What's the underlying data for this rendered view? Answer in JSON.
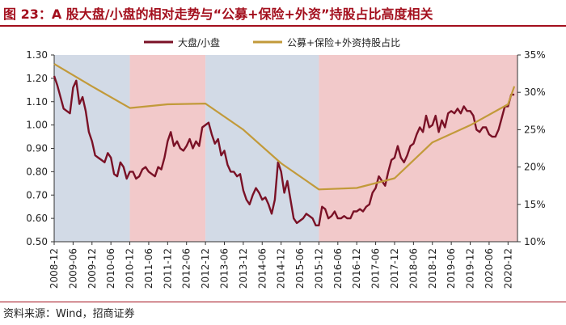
{
  "header": {
    "title": "图 23：A 股大盘/小盘的相对走势与“公募+保险+外资”持股占比高度相关"
  },
  "footer": {
    "source": "资料来源：Wind，招商证券"
  },
  "colors": {
    "title_red": "#a30f1d",
    "series_ratio": "#7a1126",
    "series_share": "#c29a3a",
    "band_blue": "#d2dae6",
    "band_pink": "#f2c9ca"
  },
  "chart_data": {
    "type": "line",
    "title": "",
    "legend_position": "top",
    "grid": false,
    "x_ticks": [
      "2008-12",
      "2009-06",
      "2009-12",
      "2010-06",
      "2010-12",
      "2011-06",
      "2011-12",
      "2012-06",
      "2012-12",
      "2013-06",
      "2013-12",
      "2014-06",
      "2014-12",
      "2015-06",
      "2015-12",
      "2016-06",
      "2016-12",
      "2017-06",
      "2017-12",
      "2018-06",
      "2018-12",
      "2019-06",
      "2019-12",
      "2020-06",
      "2020-12"
    ],
    "left_axis": {
      "min": 0.5,
      "max": 1.3,
      "ticks": [
        "0.50",
        "0.60",
        "0.70",
        "0.80",
        "0.90",
        "1.00",
        "1.10",
        "1.20",
        "1.30"
      ]
    },
    "right_axis": {
      "min": 10,
      "max": 35,
      "ticks": [
        "10%",
        "15%",
        "20%",
        "25%",
        "30%",
        "35%"
      ]
    },
    "shaded_regions": [
      {
        "start": "2008-12",
        "end": "2010-12",
        "color": "blue"
      },
      {
        "start": "2010-12",
        "end": "2012-12",
        "color": "pink"
      },
      {
        "start": "2012-12",
        "end": "2015-12",
        "color": "blue"
      },
      {
        "start": "2015-12",
        "end": "2021-03",
        "color": "pink"
      }
    ],
    "series": [
      {
        "name": "大盘/小盘",
        "axis": "left",
        "points": [
          [
            "2008-12",
            1.21
          ],
          [
            "2009-01",
            1.17
          ],
          [
            "2009-02",
            1.12
          ],
          [
            "2009-03",
            1.07
          ],
          [
            "2009-04",
            1.06
          ],
          [
            "2009-05",
            1.05
          ],
          [
            "2009-06",
            1.16
          ],
          [
            "2009-07",
            1.19
          ],
          [
            "2009-08",
            1.09
          ],
          [
            "2009-09",
            1.12
          ],
          [
            "2009-10",
            1.06
          ],
          [
            "2009-11",
            0.97
          ],
          [
            "2009-12",
            0.93
          ],
          [
            "2010-01",
            0.87
          ],
          [
            "2010-02",
            0.86
          ],
          [
            "2010-03",
            0.85
          ],
          [
            "2010-04",
            0.84
          ],
          [
            "2010-05",
            0.88
          ],
          [
            "2010-06",
            0.86
          ],
          [
            "2010-07",
            0.79
          ],
          [
            "2010-08",
            0.78
          ],
          [
            "2010-09",
            0.84
          ],
          [
            "2010-10",
            0.82
          ],
          [
            "2010-11",
            0.77
          ],
          [
            "2010-12",
            0.8
          ],
          [
            "2011-01",
            0.8
          ],
          [
            "2011-02",
            0.77
          ],
          [
            "2011-03",
            0.78
          ],
          [
            "2011-04",
            0.81
          ],
          [
            "2011-05",
            0.82
          ],
          [
            "2011-06",
            0.8
          ],
          [
            "2011-07",
            0.79
          ],
          [
            "2011-08",
            0.78
          ],
          [
            "2011-09",
            0.82
          ],
          [
            "2011-10",
            0.81
          ],
          [
            "2011-11",
            0.86
          ],
          [
            "2011-12",
            0.93
          ],
          [
            "2012-01",
            0.97
          ],
          [
            "2012-02",
            0.91
          ],
          [
            "2012-03",
            0.93
          ],
          [
            "2012-04",
            0.9
          ],
          [
            "2012-05",
            0.89
          ],
          [
            "2012-06",
            0.91
          ],
          [
            "2012-07",
            0.94
          ],
          [
            "2012-08",
            0.9
          ],
          [
            "2012-09",
            0.93
          ],
          [
            "2012-10",
            0.91
          ],
          [
            "2012-11",
            0.99
          ],
          [
            "2012-12",
            1.0
          ],
          [
            "2013-01",
            1.01
          ],
          [
            "2013-02",
            0.96
          ],
          [
            "2013-03",
            0.92
          ],
          [
            "2013-04",
            0.94
          ],
          [
            "2013-05",
            0.87
          ],
          [
            "2013-06",
            0.89
          ],
          [
            "2013-07",
            0.83
          ],
          [
            "2013-08",
            0.8
          ],
          [
            "2013-09",
            0.8
          ],
          [
            "2013-10",
            0.78
          ],
          [
            "2013-11",
            0.79
          ],
          [
            "2013-12",
            0.72
          ],
          [
            "2014-01",
            0.68
          ],
          [
            "2014-02",
            0.66
          ],
          [
            "2014-03",
            0.7
          ],
          [
            "2014-04",
            0.73
          ],
          [
            "2014-05",
            0.71
          ],
          [
            "2014-06",
            0.68
          ],
          [
            "2014-07",
            0.69
          ],
          [
            "2014-08",
            0.66
          ],
          [
            "2014-09",
            0.62
          ],
          [
            "2014-10",
            0.68
          ],
          [
            "2014-11",
            0.84
          ],
          [
            "2014-12",
            0.8
          ],
          [
            "2015-01",
            0.71
          ],
          [
            "2015-02",
            0.76
          ],
          [
            "2015-03",
            0.68
          ],
          [
            "2015-04",
            0.6
          ],
          [
            "2015-05",
            0.58
          ],
          [
            "2015-06",
            0.59
          ],
          [
            "2015-07",
            0.6
          ],
          [
            "2015-08",
            0.62
          ],
          [
            "2015-09",
            0.61
          ],
          [
            "2015-10",
            0.6
          ],
          [
            "2015-11",
            0.57
          ],
          [
            "2015-12",
            0.57
          ],
          [
            "2016-01",
            0.65
          ],
          [
            "2016-02",
            0.64
          ],
          [
            "2016-03",
            0.6
          ],
          [
            "2016-04",
            0.61
          ],
          [
            "2016-05",
            0.63
          ],
          [
            "2016-06",
            0.6
          ],
          [
            "2016-07",
            0.6
          ],
          [
            "2016-08",
            0.61
          ],
          [
            "2016-09",
            0.6
          ],
          [
            "2016-10",
            0.6
          ],
          [
            "2016-11",
            0.63
          ],
          [
            "2016-12",
            0.63
          ],
          [
            "2017-01",
            0.64
          ],
          [
            "2017-02",
            0.63
          ],
          [
            "2017-03",
            0.65
          ],
          [
            "2017-04",
            0.66
          ],
          [
            "2017-05",
            0.71
          ],
          [
            "2017-06",
            0.73
          ],
          [
            "2017-07",
            0.78
          ],
          [
            "2017-08",
            0.76
          ],
          [
            "2017-09",
            0.74
          ],
          [
            "2017-10",
            0.8
          ],
          [
            "2017-11",
            0.85
          ],
          [
            "2017-12",
            0.86
          ],
          [
            "2018-01",
            0.91
          ],
          [
            "2018-02",
            0.86
          ],
          [
            "2018-03",
            0.84
          ],
          [
            "2018-04",
            0.87
          ],
          [
            "2018-05",
            0.91
          ],
          [
            "2018-06",
            0.92
          ],
          [
            "2018-07",
            0.96
          ],
          [
            "2018-08",
            0.99
          ],
          [
            "2018-09",
            0.97
          ],
          [
            "2018-10",
            1.04
          ],
          [
            "2018-11",
            0.99
          ],
          [
            "2018-12",
            1.0
          ],
          [
            "2019-01",
            1.04
          ],
          [
            "2019-02",
            0.97
          ],
          [
            "2019-03",
            1.02
          ],
          [
            "2019-04",
            0.99
          ],
          [
            "2019-05",
            1.05
          ],
          [
            "2019-06",
            1.06
          ],
          [
            "2019-07",
            1.05
          ],
          [
            "2019-08",
            1.07
          ],
          [
            "2019-09",
            1.05
          ],
          [
            "2019-10",
            1.08
          ],
          [
            "2019-11",
            1.06
          ],
          [
            "2019-12",
            1.06
          ],
          [
            "2020-01",
            1.04
          ],
          [
            "2020-02",
            0.98
          ],
          [
            "2020-03",
            0.97
          ],
          [
            "2020-04",
            0.99
          ],
          [
            "2020-05",
            0.99
          ],
          [
            "2020-06",
            0.96
          ],
          [
            "2020-07",
            0.95
          ],
          [
            "2020-08",
            0.95
          ],
          [
            "2020-09",
            0.98
          ],
          [
            "2020-10",
            1.03
          ],
          [
            "2020-11",
            1.08
          ],
          [
            "2020-12",
            1.08
          ],
          [
            "2021-01",
            1.13
          ],
          [
            "2021-02",
            1.13
          ]
        ]
      },
      {
        "name": "公募+保险+外资持股占比",
        "axis": "right",
        "points": [
          [
            "2008-12",
            33.8
          ],
          [
            "2009-12",
            30.8
          ],
          [
            "2010-12",
            27.9
          ],
          [
            "2011-12",
            28.4
          ],
          [
            "2012-12",
            28.5
          ],
          [
            "2013-12",
            25.0
          ],
          [
            "2014-12",
            20.5
          ],
          [
            "2015-12",
            17.0
          ],
          [
            "2016-12",
            17.2
          ],
          [
            "2017-12",
            18.5
          ],
          [
            "2018-12",
            23.3
          ],
          [
            "2019-12",
            25.6
          ],
          [
            "2020-12",
            28.4
          ],
          [
            "2021-02",
            30.8
          ]
        ]
      }
    ]
  }
}
